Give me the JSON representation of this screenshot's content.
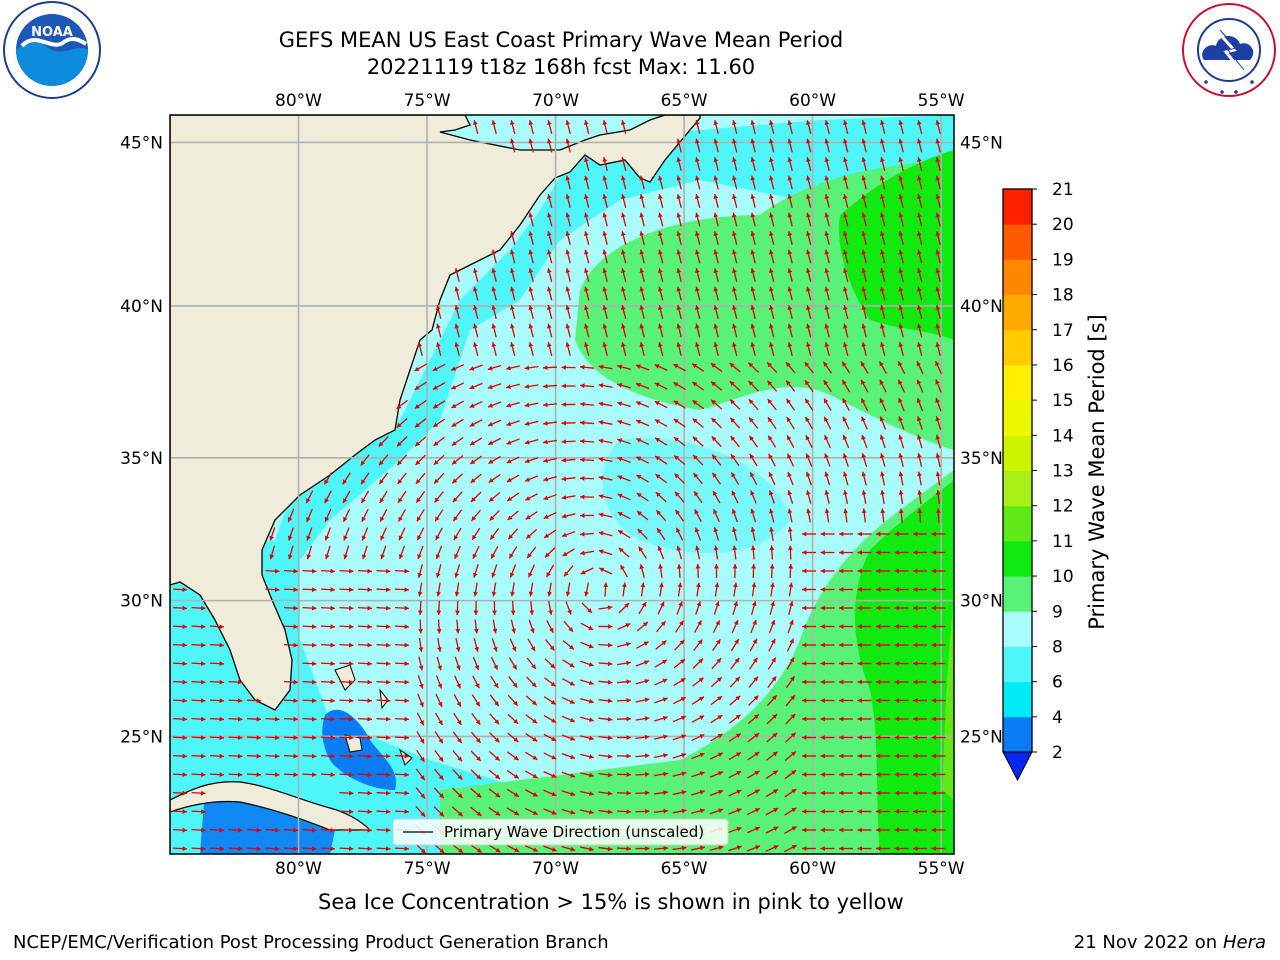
{
  "title": {
    "line1": "GEFS MEAN US East Coast Primary Wave Mean Period",
    "line2": "20221119 t18z 168h fcst   Max: 11.60"
  },
  "logos": {
    "left": {
      "name": "noaa-logo",
      "text": "NOAA"
    },
    "right": {
      "name": "nws-logo",
      "text": "NATIONAL WEATHER SERVICE"
    }
  },
  "map": {
    "lon_labels": [
      "80°W",
      "75°W",
      "70°W",
      "65°W",
      "60°W",
      "55°W"
    ],
    "lat_labels": [
      "45°N",
      "40°N",
      "35°N",
      "30°N",
      "25°N"
    ],
    "lon_values": [
      -80,
      -75,
      -70,
      -65,
      -60,
      -55
    ],
    "lat_values": [
      45,
      40,
      35,
      30,
      25
    ],
    "extent": {
      "lon_min": -85,
      "lon_max": -54.5,
      "lat_min": 20.5,
      "lat_max": 45.8
    },
    "legend_label": "Primary Wave Direction (unscaled)",
    "land_color": "#efedda",
    "arrow_color": "#e00000",
    "grid_color": "#b0b0b0"
  },
  "colorbar": {
    "label": "Primary Wave Mean Period [s]",
    "ticks": [
      "2",
      "4",
      "6",
      "8",
      "9",
      "10",
      "11",
      "12",
      "13",
      "14",
      "15",
      "16",
      "17",
      "18",
      "19",
      "20",
      "21"
    ],
    "colors": [
      "#0a7cf5",
      "#00eaf8",
      "#4ef6fa",
      "#a8fcfc",
      "#58f278",
      "#10ea10",
      "#60e818",
      "#a8f018",
      "#ccf400",
      "#ecf800",
      "#fff000",
      "#ffcc00",
      "#ffaa00",
      "#ff8800",
      "#ff5a00",
      "#ff2000"
    ],
    "extend_color": "#0028f0"
  },
  "footer": {
    "ice_note": "Sea Ice Concentration > 15% is shown in pink to yellow",
    "credit": "NCEP/EMC/Verification Post Processing Product Generation Branch",
    "date": "21 Nov 2022 on",
    "host": "Hera"
  }
}
